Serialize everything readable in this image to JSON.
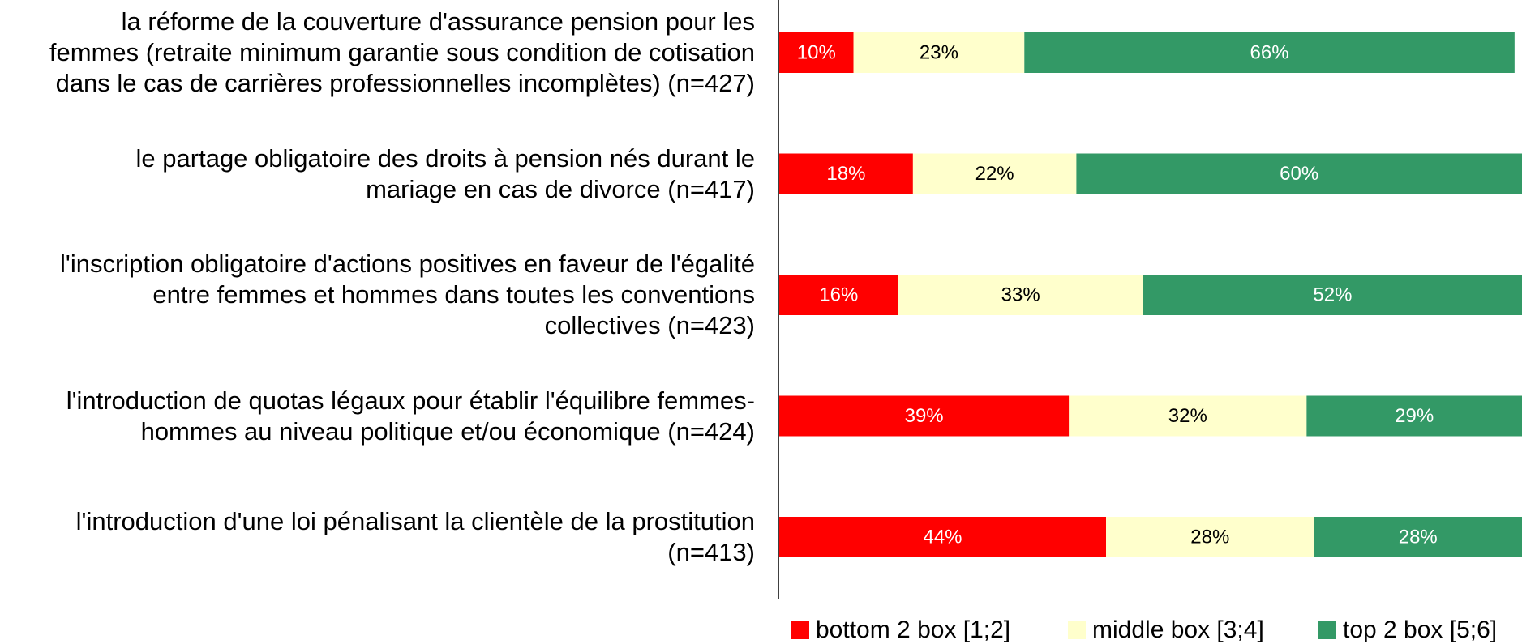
{
  "chart_data": {
    "type": "stacked_barh",
    "categories": [
      "la réforme de la couverture d'assurance pension pour les\nfemmes (retraite minimum garantie sous condition de cotisation\ndans le cas de carrières professionnelles incomplètes) (n=427)",
      "le partage obligatoire des droits à pension nés durant le\nmariage en cas de divorce (n=417)",
      "l'inscription obligatoire d'actions positives en faveur de l'égalité\nentre femmes et hommes dans toutes les conventions\ncollectives (n=423)",
      "l'introduction de quotas légaux pour établir l'équilibre femmes-\nhommes au niveau politique et/ou économique (n=424)",
      "l'introduction d'une loi pénalisant la clientèle de la prostitution\n(n=413)"
    ],
    "series": [
      {
        "name": "bottom 2 box [1;2]",
        "color": "#ff0000",
        "label_color": "#ffffff",
        "values": [
          10,
          18,
          16,
          39,
          44
        ],
        "value_labels": [
          "10%",
          "18%",
          "16%",
          "39%",
          "44%"
        ]
      },
      {
        "name": "middle box [3;4]",
        "color": "#ffffcc",
        "label_color": "#000000",
        "values": [
          23,
          22,
          33,
          32,
          28
        ],
        "value_labels": [
          "23%",
          "22%",
          "33%",
          "32%",
          "28%"
        ]
      },
      {
        "name": "top 2 box [5;6]",
        "color": "#339966",
        "label_color": "#ffffff",
        "values": [
          66,
          60,
          52,
          29,
          28
        ],
        "value_labels": [
          "66%",
          "60%",
          "52%",
          "29%",
          "28%"
        ]
      }
    ],
    "xlim": [
      0,
      100
    ],
    "legend": "bottom"
  }
}
